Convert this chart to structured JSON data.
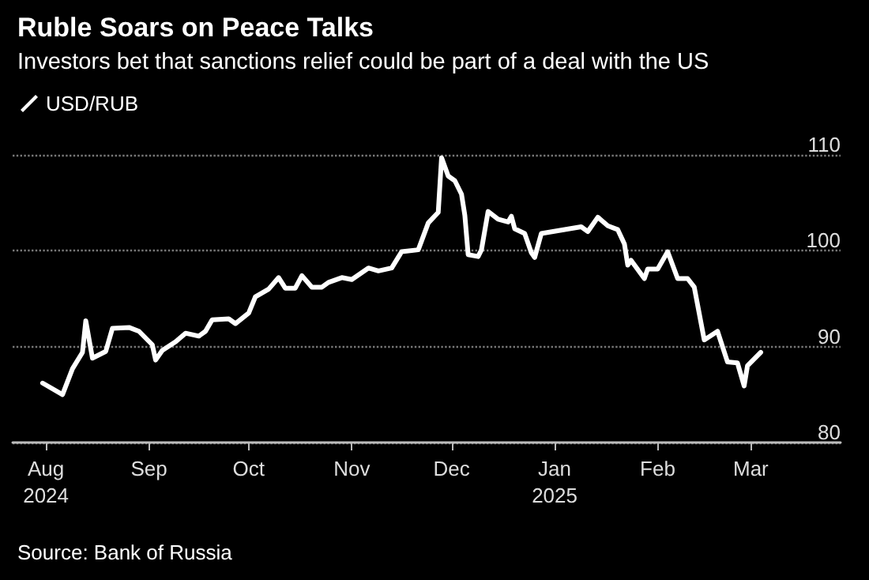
{
  "chart_data": {
    "type": "line",
    "title": "Ruble Soars on Peace Talks",
    "subtitle": "Investors bet that sanctions relief could be part of a deal with the US",
    "annotations": [
      "Source: Bank of Russia"
    ],
    "series": [
      {
        "name": "USD/RUB",
        "color": "#ffffff",
        "x": [
          "2024-07-31",
          "2024-08-06",
          "2024-08-09",
          "2024-08-12",
          "2024-08-13",
          "2024-08-15",
          "2024-08-19",
          "2024-08-21",
          "2024-08-26",
          "2024-08-29",
          "2024-09-02",
          "2024-09-03",
          "2024-09-05",
          "2024-09-09",
          "2024-09-12",
          "2024-09-16",
          "2024-09-18",
          "2024-09-20",
          "2024-09-25",
          "2024-09-27",
          "2024-10-01",
          "2024-10-03",
          "2024-10-07",
          "2024-10-10",
          "2024-10-12",
          "2024-10-15",
          "2024-10-17",
          "2024-10-20",
          "2024-10-23",
          "2024-10-25",
          "2024-10-29",
          "2024-11-01",
          "2024-11-06",
          "2024-11-09",
          "2024-11-13",
          "2024-11-16",
          "2024-11-21",
          "2024-11-24",
          "2024-11-27",
          "2024-11-28",
          "2024-11-30",
          "2024-12-02",
          "2024-12-04",
          "2024-12-05",
          "2024-12-06",
          "2024-12-09",
          "2024-12-10",
          "2024-12-12",
          "2024-12-15",
          "2024-12-18",
          "2024-12-19",
          "2024-12-20",
          "2024-12-23",
          "2024-12-25",
          "2024-12-26",
          "2024-12-28",
          "2025-01-09",
          "2025-01-11",
          "2025-01-14",
          "2025-01-17",
          "2025-01-20",
          "2025-01-22",
          "2025-01-23",
          "2025-01-24",
          "2025-01-28",
          "2025-01-29",
          "2025-02-01",
          "2025-02-04",
          "2025-02-07",
          "2025-02-10",
          "2025-02-12",
          "2025-02-15",
          "2025-02-19",
          "2025-02-22",
          "2025-02-25",
          "2025-02-27",
          "2025-02-28",
          "2025-03-04"
        ],
        "values": [
          86.2,
          85.0,
          87.7,
          89.4,
          92.7,
          88.8,
          89.5,
          91.9,
          92.0,
          91.6,
          90.2,
          88.6,
          89.6,
          90.5,
          91.4,
          91.1,
          91.6,
          92.8,
          92.9,
          92.4,
          93.5,
          95.2,
          96.0,
          97.2,
          96.1,
          96.1,
          97.4,
          96.2,
          96.2,
          96.7,
          97.2,
          97.0,
          98.2,
          97.9,
          98.2,
          99.9,
          100.1,
          102.9,
          104.0,
          109.7,
          107.8,
          107.3,
          105.9,
          103.7,
          99.6,
          99.4,
          100.1,
          104.1,
          103.3,
          103.0,
          103.6,
          102.3,
          101.8,
          99.8,
          99.3,
          101.8,
          102.5,
          102.0,
          103.5,
          102.6,
          102.2,
          100.7,
          98.5,
          99.0,
          97.1,
          98.1,
          98.1,
          99.9,
          97.1,
          97.1,
          96.2,
          90.7,
          91.6,
          88.4,
          88.3,
          85.9,
          88.0,
          89.4
        ]
      }
    ],
    "xlim": [
      "2024-07-22",
      "2025-03-28"
    ],
    "xticks": [
      {
        "value": "2024-08-01",
        "label": "Aug\n2024"
      },
      {
        "value": "2024-09-01",
        "label": "Sep"
      },
      {
        "value": "2024-10-01",
        "label": "Oct"
      },
      {
        "value": "2024-11-01",
        "label": "Nov"
      },
      {
        "value": "2024-12-01",
        "label": "Dec"
      },
      {
        "value": "2025-01-01",
        "label": "Jan\n2025"
      },
      {
        "value": "2025-02-01",
        "label": "Feb"
      },
      {
        "value": "2025-03-01",
        "label": "Mar"
      }
    ],
    "ylim": [
      80,
      110
    ],
    "yticks": [
      80,
      90,
      100,
      110
    ],
    "grid": "y",
    "legend": "top left",
    "marker": "none",
    "line_style": "solid"
  }
}
